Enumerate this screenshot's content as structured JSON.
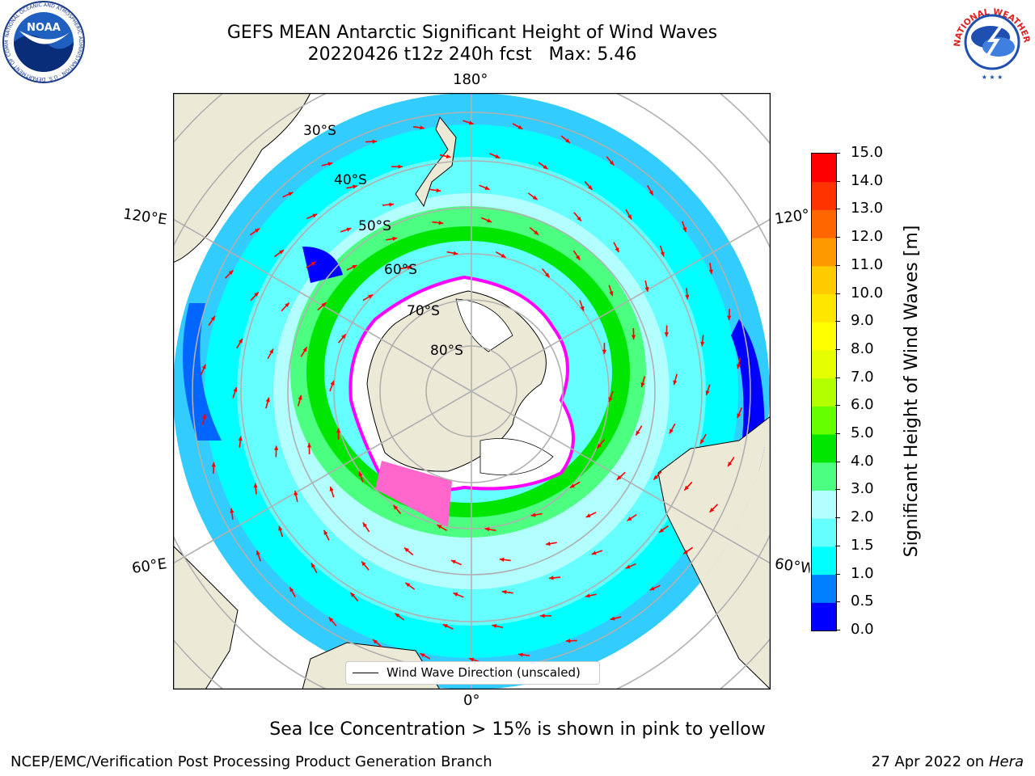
{
  "header": {
    "title": "GEFS MEAN Antarctic Significant Height of Wind Waves",
    "subtitle": "20220426 t12z 240h fcst   Max: 5.46"
  },
  "logos": {
    "left": {
      "name": "NOAA",
      "ring_text": "NATIONAL OCEANIC AND ATMOSPHERIC ADMINISTRATION · U.S. DEPARTMENT OF COMMERCE",
      "center_text": "NOAA"
    },
    "right": {
      "name": "NWS",
      "ring_text": "NATIONAL WEATHER SERVICE"
    }
  },
  "map": {
    "longitude_labels": {
      "top": "180°",
      "bottom": "0°",
      "left_upper": "120°E",
      "left_lower": "60°E",
      "right_upper": "120°W",
      "right_lower": "60°W"
    },
    "latitude_labels": [
      "30°S",
      "40°S",
      "50°S",
      "60°S",
      "70°S",
      "80°S"
    ],
    "legend_label": "Wind Wave Direction (unscaled)",
    "colors": {
      "land": "#ede9d7",
      "ice_shelf": "#ffffff",
      "sea_ice": [
        "#ff00ff",
        "#ff66cc",
        "#ffcc33"
      ],
      "arrow": "#ff0000",
      "grid": "#b0b0b0"
    }
  },
  "colorbar": {
    "label": "Significant Height of Wind Waves [m]",
    "ticks": [
      "0.0",
      "0.5",
      "1.0",
      "1.5",
      "2.0",
      "3.0",
      "4.0",
      "5.0",
      "6.0",
      "7.0",
      "8.0",
      "9.0",
      "10.0",
      "11.0",
      "12.0",
      "13.0",
      "14.0",
      "15.0"
    ],
    "colors": [
      "#0000ff",
      "#0080ff",
      "#00ffff",
      "#66ffff",
      "#b3ffff",
      "#4dff80",
      "#00e600",
      "#66ff00",
      "#b3ff00",
      "#e6ff00",
      "#ffff00",
      "#ffe600",
      "#ffcc00",
      "#ff9900",
      "#ff6600",
      "#ff3300",
      "#ff0000"
    ]
  },
  "note": "Sea Ice Concentration > 15% is shown in pink to yellow",
  "footer": {
    "left": "NCEP/EMC/Verification Post Processing Product Generation Branch",
    "right_prefix": "27 Apr 2022 on ",
    "right_machine": "Hera"
  }
}
